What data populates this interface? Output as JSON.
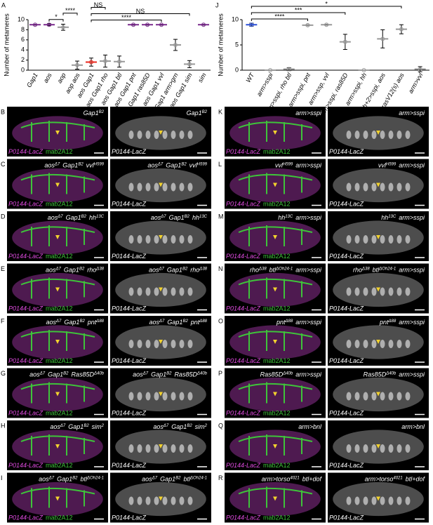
{
  "chart_data": [
    {
      "type": "dot",
      "panel": "A",
      "ylabel": "Number of metameres",
      "categories": [
        "Gap1",
        "aos",
        "aop",
        "aop aos",
        "aos Gap1",
        "aos Gap1 rho",
        "aos Gap1 btl",
        "aos Gap1 pnt",
        "aos Gap1 ras85D",
        "aos Gap1 vvl",
        "aos Gap1 arm>grn",
        "aos Gap1 sim",
        "sim"
      ],
      "values": [
        9,
        9,
        8.5,
        1,
        1.6,
        1.8,
        1.7,
        9,
        9,
        9,
        5,
        1.2,
        9
      ],
      "errors": [
        0.1,
        0.2,
        0.6,
        0.8,
        0.8,
        1.2,
        1.1,
        0.1,
        0.1,
        0.1,
        1.1,
        0.7,
        0.1
      ],
      "colors": [
        "#7b2d8e",
        "#7b2d8e",
        "#999999",
        "#999999",
        "#e8281e",
        "#999999",
        "#999999",
        "#7b2d8e",
        "#7b2d8e",
        "#7b2d8e",
        "#999999",
        "#999999",
        "#7b2d8e"
      ],
      "ylim": [
        0,
        10
      ],
      "yticks": [
        0,
        2,
        4,
        6,
        8,
        10
      ],
      "annotations": [
        {
          "text": "*",
          "between": [
            "aos",
            "aop"
          ]
        },
        {
          "text": "****",
          "between": [
            "aop",
            "aop aos"
          ]
        },
        {
          "text": "****",
          "between": [
            "aos Gap1",
            "aos Gap1 vvl"
          ]
        },
        {
          "text": "NS",
          "between": [
            "aos Gap1",
            "aos Gap1 sim"
          ]
        },
        {
          "text": "NS",
          "between": [
            "aos Gap1",
            "aos Gap1 rho"
          ]
        }
      ]
    },
    {
      "type": "dot",
      "panel": "J",
      "ylabel": "Number of metameres",
      "categories": [
        "WT",
        "arm>sspi",
        "arm>sspi, rho btl",
        "arm>sspi, pnt",
        "arm>ssp, vvl",
        "arm>sspi, ras85D",
        "arm>sspi, hh",
        "trh+2>sspi, aos",
        "btlK3>rasV12(s) aos",
        "arm>vvl"
      ],
      "values": [
        9,
        0,
        0.2,
        8.9,
        9,
        5.6,
        0,
        6.2,
        8.1,
        0.2
      ],
      "errors": [
        0.3,
        0,
        0.3,
        0.1,
        0.1,
        1.5,
        0,
        1.8,
        0.9,
        0.5
      ],
      "colors": [
        "#2a4fd6",
        "#999999",
        "#999999",
        "#999999",
        "#999999",
        "#999999",
        "#999999",
        "#999999",
        "#999999",
        "#999999"
      ],
      "ylim": [
        0,
        10
      ],
      "yticks": [
        0,
        5,
        10
      ],
      "annotations": [
        {
          "text": "****",
          "between": [
            "WT",
            "arm>sspi, pnt"
          ]
        },
        {
          "text": "***",
          "between": [
            "WT",
            "arm>sspi, ras85D"
          ]
        },
        {
          "text": "*",
          "between": [
            "WT",
            "btlK3>rasV12(s) aos"
          ]
        }
      ]
    }
  ],
  "stain_labels": {
    "reporter": "P0144-LacZ",
    "antibody": "mab2A12"
  },
  "panels": [
    {
      "letter": "B",
      "genotype": [
        {
          "text": "Gap1",
          "sup": "B2"
        }
      ]
    },
    {
      "letter": "C",
      "genotype": [
        {
          "text": "aos",
          "sup": "Δ7"
        },
        {
          "text": "Gap1",
          "sup": "B2"
        },
        {
          "text": "vvl",
          "sup": "H599"
        }
      ]
    },
    {
      "letter": "D",
      "genotype": [
        {
          "text": "aos",
          "sup": "Δ7"
        },
        {
          "text": "Gap1",
          "sup": "B2"
        },
        {
          "text": "hh",
          "sup": "13C"
        }
      ]
    },
    {
      "letter": "E",
      "genotype": [
        {
          "text": "aos",
          "sup": "Δ7"
        },
        {
          "text": "Gap1",
          "sup": "B2"
        },
        {
          "text": "rho",
          "sup": "Δ38"
        }
      ]
    },
    {
      "letter": "F",
      "genotype": [
        {
          "text": "aos",
          "sup": "Δ7"
        },
        {
          "text": "Gap1",
          "sup": "B2"
        },
        {
          "text": "pnt",
          "sup": "Δ88"
        }
      ]
    },
    {
      "letter": "G",
      "genotype": [
        {
          "text": "aos",
          "sup": "Δ7"
        },
        {
          "text": "Gap1",
          "sup": "B2"
        },
        {
          "text": "Ras85D",
          "sup": "Δ40b"
        }
      ]
    },
    {
      "letter": "H",
      "genotype": [
        {
          "text": "aos",
          "sup": "Δ7"
        },
        {
          "text": "Gap1",
          "sup": "B2"
        },
        {
          "text": "sim",
          "sup": "2"
        }
      ]
    },
    {
      "letter": "I",
      "genotype": [
        {
          "text": "aos",
          "sup": "Δ7"
        },
        {
          "text": "Gap1",
          "sup": "B2"
        },
        {
          "text": "btl",
          "sup": "ΔOh24-1"
        }
      ]
    },
    {
      "letter": "K",
      "genotype": [
        {
          "text": "arm>sspi"
        }
      ]
    },
    {
      "letter": "L",
      "genotype": [
        {
          "text": "vvl",
          "sup": "H599"
        },
        {
          "text": "arm>sspi"
        }
      ]
    },
    {
      "letter": "M",
      "genotype": [
        {
          "text": "hh",
          "sup": "13C"
        },
        {
          "text": "arm>sspi"
        }
      ]
    },
    {
      "letter": "N",
      "genotype": [
        {
          "text": "rho",
          "sup": "Δ38"
        },
        {
          "text": "btl",
          "sup": "ΔOh24-1"
        },
        {
          "text": "arm>sspi"
        }
      ]
    },
    {
      "letter": "O",
      "genotype": [
        {
          "text": "pnt",
          "sup": "Δ88"
        },
        {
          "text": "arm>sspi"
        }
      ]
    },
    {
      "letter": "P",
      "genotype": [
        {
          "text": "Ras85D",
          "sup": "Δ40b"
        },
        {
          "text": "arm>sspi"
        }
      ]
    },
    {
      "letter": "Q",
      "genotype": [
        {
          "text": "arm>bnl"
        }
      ]
    },
    {
      "letter": "R",
      "genotype": [
        {
          "text": "arm>torso",
          "sup": "4021"
        },
        {
          "text": "btl+dof"
        }
      ]
    }
  ]
}
